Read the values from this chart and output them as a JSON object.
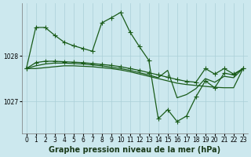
{
  "background_color": "#cce8ee",
  "grid_color": "#aacfd8",
  "line_color": "#1a5c1a",
  "marker": "+",
  "markersize": 4,
  "linewidth": 0.9,
  "xlabel": "Graphe pression niveau de la mer (hPa)",
  "xlabel_fontsize": 7,
  "tick_fontsize": 5.5,
  "yticks": [
    1027,
    1028
  ],
  "ylim": [
    1026.3,
    1029.15
  ],
  "xlim": [
    -0.5,
    23.5
  ],
  "xticks": [
    0,
    1,
    2,
    3,
    4,
    5,
    6,
    7,
    8,
    9,
    10,
    11,
    12,
    13,
    14,
    15,
    16,
    17,
    18,
    19,
    20,
    21,
    22,
    23
  ],
  "series": [
    {
      "x": [
        0,
        1,
        2,
        3,
        4,
        5,
        6,
        7,
        8,
        9,
        10,
        11,
        12,
        13,
        14,
        15,
        16,
        17,
        18,
        19,
        20,
        21,
        22,
        23
      ],
      "y": [
        1027.72,
        1028.62,
        1028.62,
        1028.45,
        1028.3,
        1028.22,
        1028.16,
        1028.1,
        1028.72,
        1028.83,
        1028.95,
        1028.52,
        1028.2,
        1027.9,
        1026.62,
        1026.82,
        1026.56,
        1026.68,
        1027.1,
        1027.45,
        1027.3,
        1027.62,
        1027.58,
        1027.72
      ],
      "marker": true
    },
    {
      "x": [
        0,
        1,
        2,
        3,
        4,
        5,
        6,
        7,
        8,
        9,
        10,
        11,
        12,
        13,
        14,
        15,
        16,
        17,
        18,
        19,
        20,
        21,
        22,
        23
      ],
      "y": [
        1027.72,
        1027.85,
        1027.88,
        1027.88,
        1027.87,
        1027.86,
        1027.85,
        1027.83,
        1027.81,
        1027.79,
        1027.76,
        1027.72,
        1027.68,
        1027.63,
        1027.58,
        1027.53,
        1027.48,
        1027.44,
        1027.42,
        1027.72,
        1027.6,
        1027.72,
        1027.6,
        1027.72
      ],
      "marker": true
    },
    {
      "x": [
        0,
        1,
        2,
        3,
        4,
        5,
        6,
        7,
        8,
        9,
        10,
        11,
        12,
        13,
        14,
        15,
        16,
        17,
        18,
        19,
        20,
        21,
        22,
        23
      ],
      "y": [
        1027.72,
        1027.78,
        1027.82,
        1027.84,
        1027.84,
        1027.83,
        1027.82,
        1027.8,
        1027.78,
        1027.75,
        1027.72,
        1027.68,
        1027.63,
        1027.58,
        1027.52,
        1027.68,
        1027.08,
        1027.15,
        1027.28,
        1027.5,
        1027.42,
        1027.55,
        1027.52,
        1027.72
      ],
      "marker": false
    },
    {
      "x": [
        0,
        1,
        2,
        3,
        4,
        5,
        6,
        7,
        8,
        9,
        10,
        11,
        12,
        13,
        14,
        15,
        16,
        17,
        18,
        19,
        20,
        21,
        22,
        23
      ],
      "y": [
        1027.72,
        1027.72,
        1027.74,
        1027.76,
        1027.78,
        1027.78,
        1027.77,
        1027.76,
        1027.74,
        1027.72,
        1027.69,
        1027.65,
        1027.6,
        1027.55,
        1027.5,
        1027.45,
        1027.4,
        1027.37,
        1027.35,
        1027.33,
        1027.31,
        1027.3,
        1027.3,
        1027.72
      ],
      "marker": false
    }
  ]
}
